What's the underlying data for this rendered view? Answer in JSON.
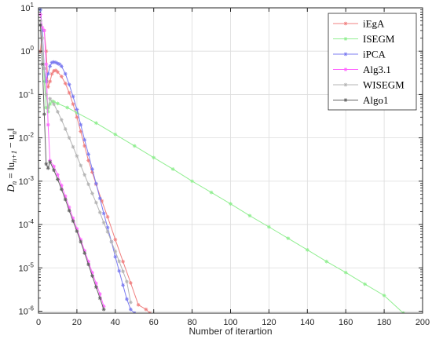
{
  "chart_data": {
    "type": "line",
    "xlabel": "Number of iterartion",
    "ylabel": "D",
    "ylabel_sub": "n",
    "ylabel_rhs": " = ‖u",
    "ylabel_rhs_sub1": "n+1",
    "ylabel_mid": " − u",
    "ylabel_rhs_sub2": "n",
    "ylabel_end": "‖",
    "y_scale": "log",
    "xlim": [
      0,
      200
    ],
    "ylim": [
      9e-07,
      10
    ],
    "grid": true,
    "legend_position": "top-right",
    "x_ticks": [
      0,
      20,
      40,
      60,
      80,
      100,
      120,
      140,
      160,
      180,
      200
    ],
    "x_tick_labels": [
      "0",
      "20",
      "40",
      "60",
      "80",
      "100",
      "120",
      "140",
      "160",
      "180",
      "200"
    ],
    "y_ticks": [
      1e-06,
      1e-05,
      0.0001,
      0.001,
      0.01,
      0.1,
      1,
      10
    ],
    "y_tick_bases": [
      "10",
      "10",
      "10",
      "10",
      "10",
      "10",
      "10",
      "10"
    ],
    "y_tick_exps": [
      "-6",
      "-5",
      "-4",
      "-3",
      "-2",
      "-1",
      "0",
      "1"
    ],
    "series": [
      {
        "name": "iEgA",
        "color": "#f08080",
        "marker": "asterisk",
        "x": [
          1,
          2,
          3,
          4,
          5,
          6,
          7,
          8,
          9,
          10,
          12,
          14,
          16,
          18,
          20,
          22,
          24,
          26,
          28,
          30,
          33,
          36,
          40,
          44,
          48,
          52,
          56,
          58
        ],
        "y": [
          1,
          3,
          3,
          1,
          0.15,
          0.2,
          0.3,
          0.35,
          0.36,
          0.33,
          0.26,
          0.18,
          0.11,
          0.06,
          0.03,
          0.014,
          0.0065,
          0.003,
          0.0016,
          0.00085,
          0.00035,
          0.00015,
          4.5e-05,
          1.4e-05,
          4.5e-06,
          1.4e-06,
          1.1e-06,
          9e-07
        ]
      },
      {
        "name": "ISEGM",
        "color": "#90ee90",
        "marker": "asterisk",
        "x": [
          1,
          2,
          3,
          4,
          5,
          6,
          7,
          8,
          10,
          15,
          20,
          30,
          40,
          50,
          60,
          70,
          80,
          90,
          100,
          110,
          120,
          130,
          140,
          150,
          160,
          170,
          180,
          190
        ],
        "y": [
          9,
          3,
          0.2,
          0.05,
          0.04,
          0.06,
          0.07,
          0.068,
          0.062,
          0.05,
          0.038,
          0.022,
          0.012,
          0.0065,
          0.0035,
          0.0019,
          0.001,
          0.00055,
          0.0003,
          0.00016,
          8.8e-05,
          4.8e-05,
          2.6e-05,
          1.4e-05,
          7.8e-06,
          4.2e-06,
          2.3e-06,
          9e-07
        ]
      },
      {
        "name": "iPCA",
        "color": "#7b7bf0",
        "marker": "asterisk",
        "x": [
          1,
          2,
          3,
          4,
          5,
          6,
          7,
          8,
          9,
          10,
          11,
          12,
          14,
          16,
          18,
          20,
          22,
          24,
          26,
          28,
          30,
          32,
          34,
          36,
          38,
          40,
          42,
          44,
          46,
          48,
          50,
          52
        ],
        "y": [
          9,
          3,
          0.4,
          0.2,
          0.3,
          0.45,
          0.55,
          0.56,
          0.55,
          0.52,
          0.5,
          0.45,
          0.3,
          0.17,
          0.09,
          0.045,
          0.02,
          0.009,
          0.0042,
          0.0019,
          0.00088,
          0.0004,
          0.00018,
          8.5e-05,
          4e-05,
          1.8e-05,
          8.5e-06,
          4e-06,
          1.9e-06,
          1.1e-06,
          9e-07,
          8e-07
        ]
      },
      {
        "name": "Alg3.1",
        "color": "#ff66ff",
        "marker": "asterisk",
        "x": [
          1,
          2,
          3,
          4,
          5,
          6,
          8,
          10,
          12,
          14,
          16,
          18,
          20,
          22,
          24,
          26,
          28,
          30,
          32,
          34
        ],
        "y": [
          7,
          3.5,
          3,
          0.5,
          0.02,
          0.003,
          0.0022,
          0.0014,
          0.0008,
          0.00045,
          0.00025,
          0.00014,
          8e-05,
          4.5e-05,
          2.5e-05,
          1.4e-05,
          7.8e-06,
          4.4e-06,
          2.5e-06,
          1.3e-06
        ]
      },
      {
        "name": "WISEGM",
        "color": "#b4b4b4",
        "marker": "asterisk",
        "x": [
          1,
          2,
          3,
          4,
          5,
          6,
          8,
          10,
          12,
          14,
          16,
          18,
          20,
          22,
          24,
          26,
          28,
          30,
          32,
          34,
          36,
          38,
          40,
          42,
          44,
          46,
          48
        ],
        "y": [
          5,
          2,
          0.4,
          0.1,
          0.05,
          0.08,
          0.06,
          0.04,
          0.026,
          0.016,
          0.01,
          0.0062,
          0.0038,
          0.0023,
          0.0014,
          0.00085,
          0.00052,
          0.00032,
          0.00019,
          0.00011,
          6.8e-05,
          4e-05,
          2.4e-05,
          1.42e-05,
          8.3e-06,
          4.8e-06,
          1.6e-06
        ]
      },
      {
        "name": "Algo1",
        "color": "#646464",
        "marker": "asterisk",
        "x": [
          1,
          2,
          3,
          4,
          5,
          6,
          8,
          10,
          12,
          14,
          16,
          18,
          20,
          22,
          24,
          26,
          28,
          30,
          32,
          34
        ],
        "y": [
          4,
          0.5,
          0.035,
          0.0025,
          0.002,
          0.0028,
          0.0018,
          0.0011,
          0.00065,
          0.00038,
          0.00021,
          0.00012,
          7e-05,
          4e-05,
          2.2e-05,
          1.2e-05,
          6.5e-06,
          3.6e-06,
          2e-06,
          1.1e-06
        ]
      }
    ]
  }
}
